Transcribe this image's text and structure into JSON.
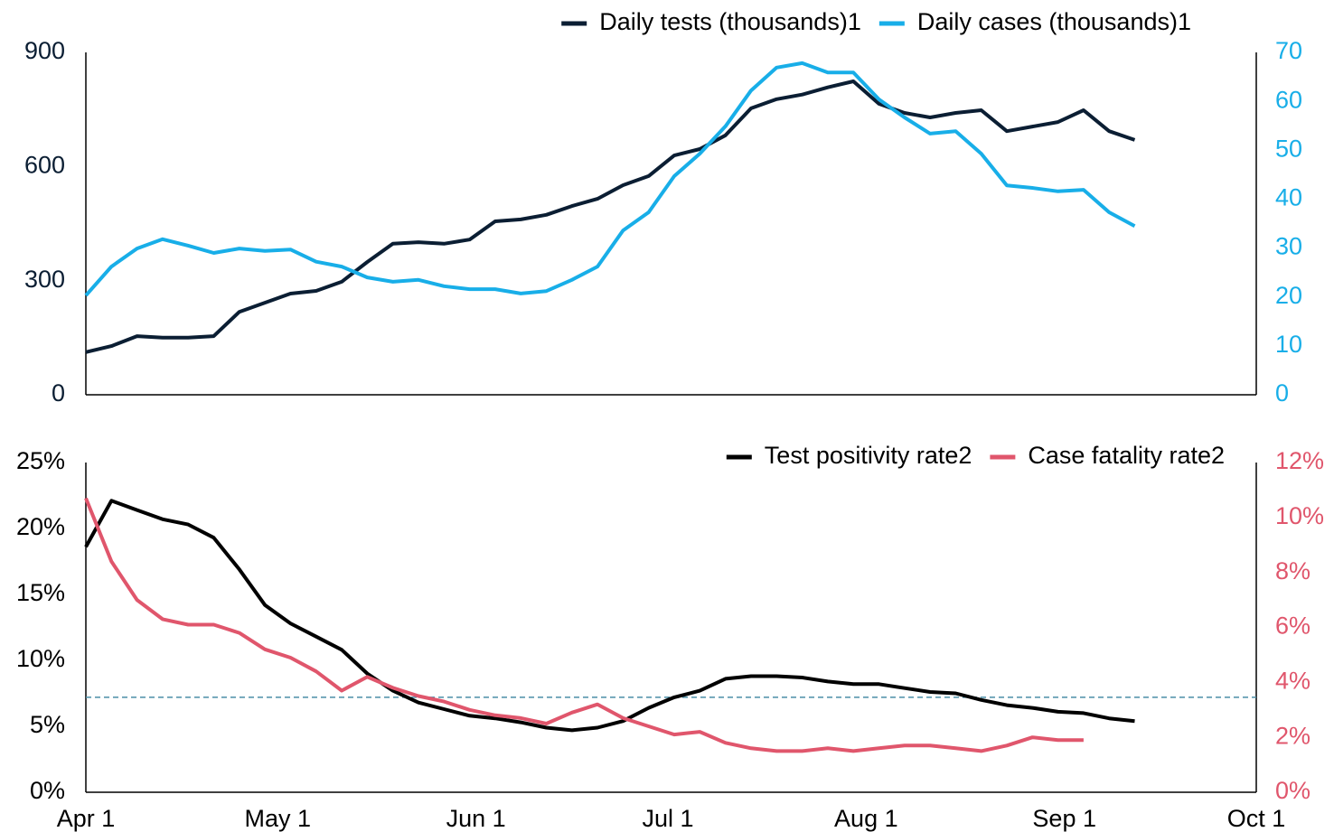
{
  "chart_data": [
    {
      "type": "line",
      "x": [
        0,
        4,
        8,
        12,
        16,
        20,
        24,
        28,
        32,
        36,
        40,
        44,
        48,
        52,
        56,
        60,
        64,
        68,
        72,
        76,
        80,
        84,
        88,
        92,
        96,
        100,
        104,
        108,
        112,
        116,
        120,
        124,
        128,
        132,
        136,
        140,
        144,
        148,
        152,
        156,
        160,
        164
      ],
      "xlim": [
        0,
        183
      ],
      "ylim": [
        0,
        900
      ],
      "yticks": [
        0,
        300,
        600,
        900
      ],
      "y2lim": [
        0,
        70
      ],
      "y2ticks": [
        0,
        10,
        20,
        30,
        40,
        50,
        60,
        70
      ],
      "legend": "upper right",
      "series": [
        {
          "name": "Daily tests (thousands)1",
          "color": "#0b1e33",
          "axis": "y",
          "values": [
            112,
            128,
            154,
            150,
            150,
            154,
            218,
            242,
            266,
            273,
            297,
            349,
            397,
            401,
            397,
            408,
            456,
            461,
            473,
            496,
            515,
            551,
            575,
            629,
            646,
            682,
            753,
            777,
            789,
            808,
            824,
            765,
            741,
            729,
            741,
            748,
            693,
            705,
            717,
            748,
            693,
            670
          ]
        },
        {
          "name": "Daily cases (thousands)1",
          "color": "#18aee8",
          "axis": "y2",
          "values": [
            20.3,
            26.2,
            29.9,
            31.8,
            30.5,
            29.0,
            29.9,
            29.4,
            29.7,
            27.2,
            26.2,
            24.0,
            23.1,
            23.5,
            22.2,
            21.6,
            21.6,
            20.7,
            21.2,
            23.5,
            26.2,
            33.6,
            37.3,
            44.7,
            49.3,
            54.9,
            62.2,
            66.9,
            67.8,
            65.9,
            65.9,
            60.4,
            56.7,
            53.4,
            53.9,
            49.3,
            42.8,
            42.3,
            41.6,
            41.9,
            37.3,
            34.5
          ]
        }
      ]
    },
    {
      "type": "line",
      "x": [
        0,
        4,
        8,
        12,
        16,
        20,
        24,
        28,
        32,
        36,
        40,
        44,
        48,
        52,
        56,
        60,
        64,
        68,
        72,
        76,
        80,
        84,
        88,
        92,
        96,
        100,
        104,
        108,
        112,
        116,
        120,
        124,
        128,
        132,
        136,
        140,
        144,
        148,
        152,
        156,
        160,
        164
      ],
      "xlim": [
        0,
        183
      ],
      "xticks": [
        {
          "value": 0,
          "label": "Apr 1"
        },
        {
          "value": 30,
          "label": "May 1"
        },
        {
          "value": 61,
          "label": "Jun 1"
        },
        {
          "value": 91,
          "label": "Jul 1"
        },
        {
          "value": 122,
          "label": "Aug 1"
        },
        {
          "value": 153,
          "label": "Sep 1"
        },
        {
          "value": 183,
          "label": "Oct 1"
        }
      ],
      "ylim": [
        0,
        25
      ],
      "yticks": [
        {
          "value": 0,
          "label": "0%"
        },
        {
          "value": 5,
          "label": "5%"
        },
        {
          "value": 10,
          "label": "10%"
        },
        {
          "value": 15,
          "label": "15%"
        },
        {
          "value": 20,
          "label": "20%"
        },
        {
          "value": 25,
          "label": "25%"
        }
      ],
      "y2lim": [
        0,
        12
      ],
      "y2ticks": [
        {
          "value": 0,
          "label": "0%"
        },
        {
          "value": 2,
          "label": "2%"
        },
        {
          "value": 4,
          "label": "4%"
        },
        {
          "value": 6,
          "label": "6%"
        },
        {
          "value": 8,
          "label": "8%"
        },
        {
          "value": 10,
          "label": "10%"
        },
        {
          "value": 12,
          "label": "12%"
        }
      ],
      "reference_line": 7.2,
      "reference_color": "#4a8fa8",
      "legend": "upper right",
      "series": [
        {
          "name": "Test positivity rate2",
          "color": "#000000",
          "axis": "y",
          "values": [
            18.6,
            22.1,
            21.4,
            20.7,
            20.3,
            19.3,
            16.9,
            14.2,
            12.8,
            11.8,
            10.8,
            9.0,
            7.7,
            6.8,
            6.3,
            5.8,
            5.6,
            5.3,
            4.9,
            4.7,
            4.9,
            5.4,
            6.4,
            7.2,
            7.7,
            8.6,
            8.8,
            8.8,
            8.7,
            8.4,
            8.2,
            8.2,
            7.9,
            7.6,
            7.5,
            7.0,
            6.6,
            6.4,
            6.1,
            6.0,
            5.6,
            5.4
          ]
        },
        {
          "name": "Case fatality rate2",
          "color": "#e0566c",
          "axis": "y2",
          "values": [
            10.7,
            8.4,
            7.0,
            6.3,
            6.1,
            6.1,
            5.8,
            5.2,
            4.9,
            4.4,
            3.7,
            4.2,
            3.8,
            3.5,
            3.3,
            3.0,
            2.8,
            2.7,
            2.5,
            2.9,
            3.2,
            2.7,
            2.4,
            2.1,
            2.2,
            1.8,
            1.6,
            1.5,
            1.5,
            1.6,
            1.5,
            1.6,
            1.7,
            1.7,
            1.6,
            1.5,
            1.7,
            2.0,
            1.9,
            1.9,
            null,
            null
          ]
        }
      ]
    }
  ]
}
